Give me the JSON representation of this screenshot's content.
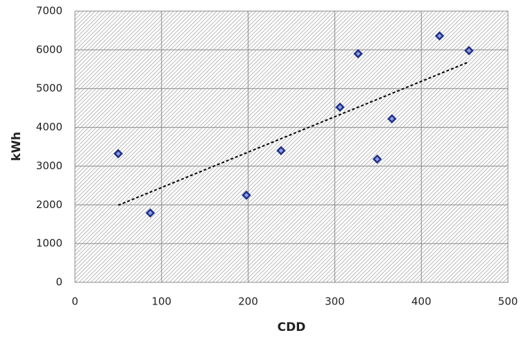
{
  "chart_data": {
    "type": "scatter",
    "x_label": "CDD",
    "y_label": "kWh",
    "series": [
      {
        "color": "#1f2f8a",
        "x": [
          50,
          87,
          198,
          238,
          306,
          327,
          349,
          366,
          421,
          455
        ],
        "values": [
          3320,
          1790,
          2250,
          3400,
          4520,
          5900,
          3180,
          4220,
          6360,
          5980
        ]
      }
    ],
    "trendline": {
      "x": [
        50,
        455
      ],
      "values": [
        1990,
        5690
      ],
      "color": "#000000"
    },
    "xlim": [
      0,
      500
    ],
    "xticks": [
      0,
      100,
      200,
      300,
      400,
      500
    ],
    "ylim": [
      0,
      7000
    ],
    "yticks": [
      0,
      1000,
      2000,
      3000,
      4000,
      5000,
      6000,
      7000
    ],
    "grid": true
  }
}
